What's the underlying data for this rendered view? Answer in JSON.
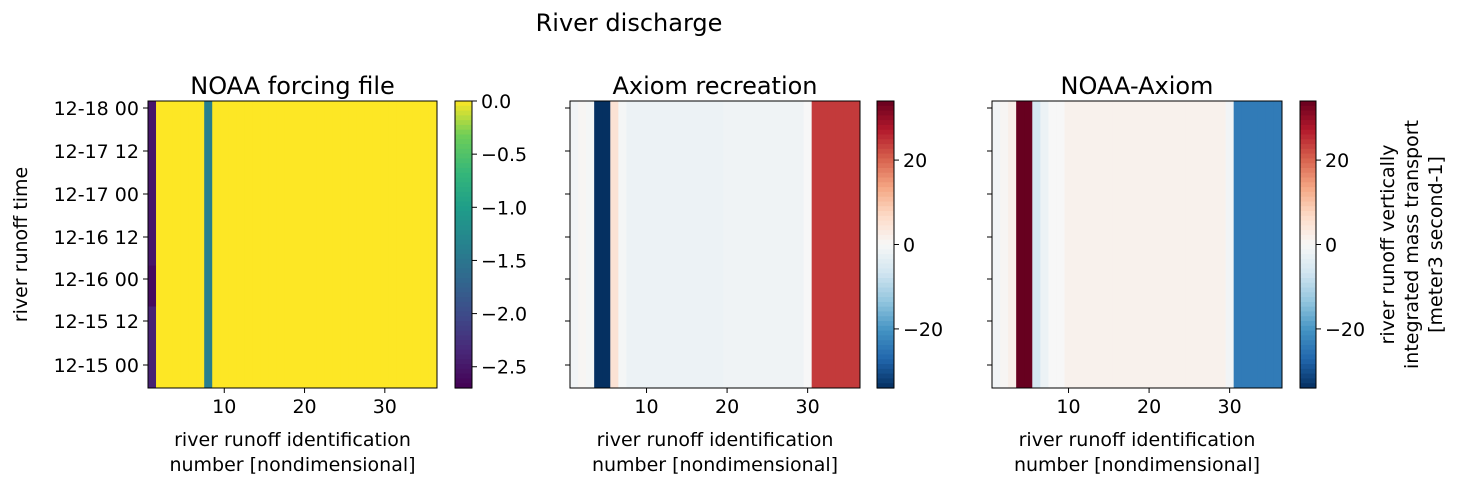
{
  "figure": {
    "suptitle": "River discharge"
  },
  "colors": {
    "viridis_low": "#440154",
    "viridis_high": "#fde725",
    "rdbu_low": "#053061",
    "rdbu_mid": "#f7f7f7",
    "rdbu_high": "#67001f"
  },
  "chart_data": [
    {
      "type": "heatmap",
      "title": "NOAA forcing file",
      "xlabel": "river runoff identification\nnumber [nondimensional]",
      "ylabel": "river runoff time",
      "x": [
        1,
        2,
        3,
        4,
        5,
        6,
        7,
        8,
        9,
        10,
        11,
        12,
        13,
        14,
        15,
        16,
        17,
        18,
        19,
        20,
        21,
        22,
        23,
        24,
        25,
        26,
        27,
        28,
        29,
        30,
        31,
        32,
        33,
        34,
        35,
        36
      ],
      "y": [
        "12-15 00",
        "12-15 12",
        "12-16 00",
        "12-16 12",
        "12-17 00",
        "12-17 12",
        "12-18 00"
      ],
      "xlim": [
        0.5,
        36.5
      ],
      "xticks": [
        "10",
        "20",
        "30"
      ],
      "yticks": [
        "12-15 00",
        "12-15 12",
        "12-16 00",
        "12-16 12",
        "12-17 00",
        "12-17 12",
        "12-18 00"
      ],
      "colormap": "viridis",
      "vmin": -2.7,
      "vmax": 0.0,
      "colorbar_ticks": [
        "0.0",
        "−0.5",
        "−1.0",
        "−1.5",
        "−2.0",
        "−2.5"
      ],
      "colorbar_label": "",
      "column_1_values": [
        -2.4,
        -2.4,
        -2.6,
        -2.5,
        -2.5,
        -2.5,
        -2.5
      ],
      "column_8_value": -1.4,
      "other_columns_value": 0.0
    },
    {
      "type": "heatmap",
      "title": "Axiom recreation",
      "xlabel": "river runoff identification\nnumber [nondimensional]",
      "ylabel": "",
      "x": [
        1,
        2,
        3,
        4,
        5,
        6,
        7,
        8,
        9,
        10,
        11,
        12,
        13,
        14,
        15,
        16,
        17,
        18,
        19,
        20,
        21,
        22,
        23,
        24,
        25,
        26,
        27,
        28,
        29,
        30,
        31,
        32,
        33,
        34,
        35,
        36
      ],
      "xlim": [
        0.5,
        36.5
      ],
      "xticks": [
        "10",
        "20",
        "30"
      ],
      "colormap": "RdBu_r",
      "vmin": -34,
      "vmax": 34,
      "colorbar_ticks": [
        "20",
        "0",
        "−20"
      ],
      "colorbar_label": "",
      "column_values": [
        -1,
        0.5,
        -0.5,
        -34,
        -34,
        5,
        -0.5,
        -2,
        -2,
        -2,
        -2,
        -2,
        -2,
        -2,
        -2,
        -2,
        -2,
        -2,
        -2,
        -1.5,
        -1.5,
        -1.5,
        -1.5,
        -1.5,
        -1.5,
        -1.5,
        -1.5,
        -1.5,
        -1.5,
        0,
        24,
        24,
        24,
        24,
        24,
        24
      ]
    },
    {
      "type": "heatmap",
      "title": "NOAA-Axiom",
      "xlabel": "river runoff identification\nnumber [nondimensional]",
      "ylabel": "",
      "x": [
        1,
        2,
        3,
        4,
        5,
        6,
        7,
        8,
        9,
        10,
        11,
        12,
        13,
        14,
        15,
        16,
        17,
        18,
        19,
        20,
        21,
        22,
        23,
        24,
        25,
        26,
        27,
        28,
        29,
        30,
        31,
        32,
        33,
        34,
        35,
        36
      ],
      "xlim": [
        0.5,
        36.5
      ],
      "xticks": [
        "10",
        "20",
        "30"
      ],
      "colormap": "RdBu_r",
      "vmin": -34,
      "vmax": 34,
      "colorbar_ticks": [
        "20",
        "0",
        "−20"
      ],
      "colorbar_label": "river runoff vertically\nintegrated mass transport\n[meter3 second-1]",
      "column_values": [
        -1,
        0.5,
        2,
        34,
        34,
        -6,
        -2,
        0,
        0,
        1.5,
        1.5,
        1.5,
        1.5,
        1.5,
        1.5,
        1.5,
        1.5,
        1.5,
        1.5,
        1.5,
        1.5,
        1.5,
        1.5,
        1.5,
        1.5,
        1.5,
        1.5,
        1.5,
        1.5,
        -1,
        -24,
        -24,
        -24,
        -24,
        -24,
        -24
      ]
    }
  ]
}
